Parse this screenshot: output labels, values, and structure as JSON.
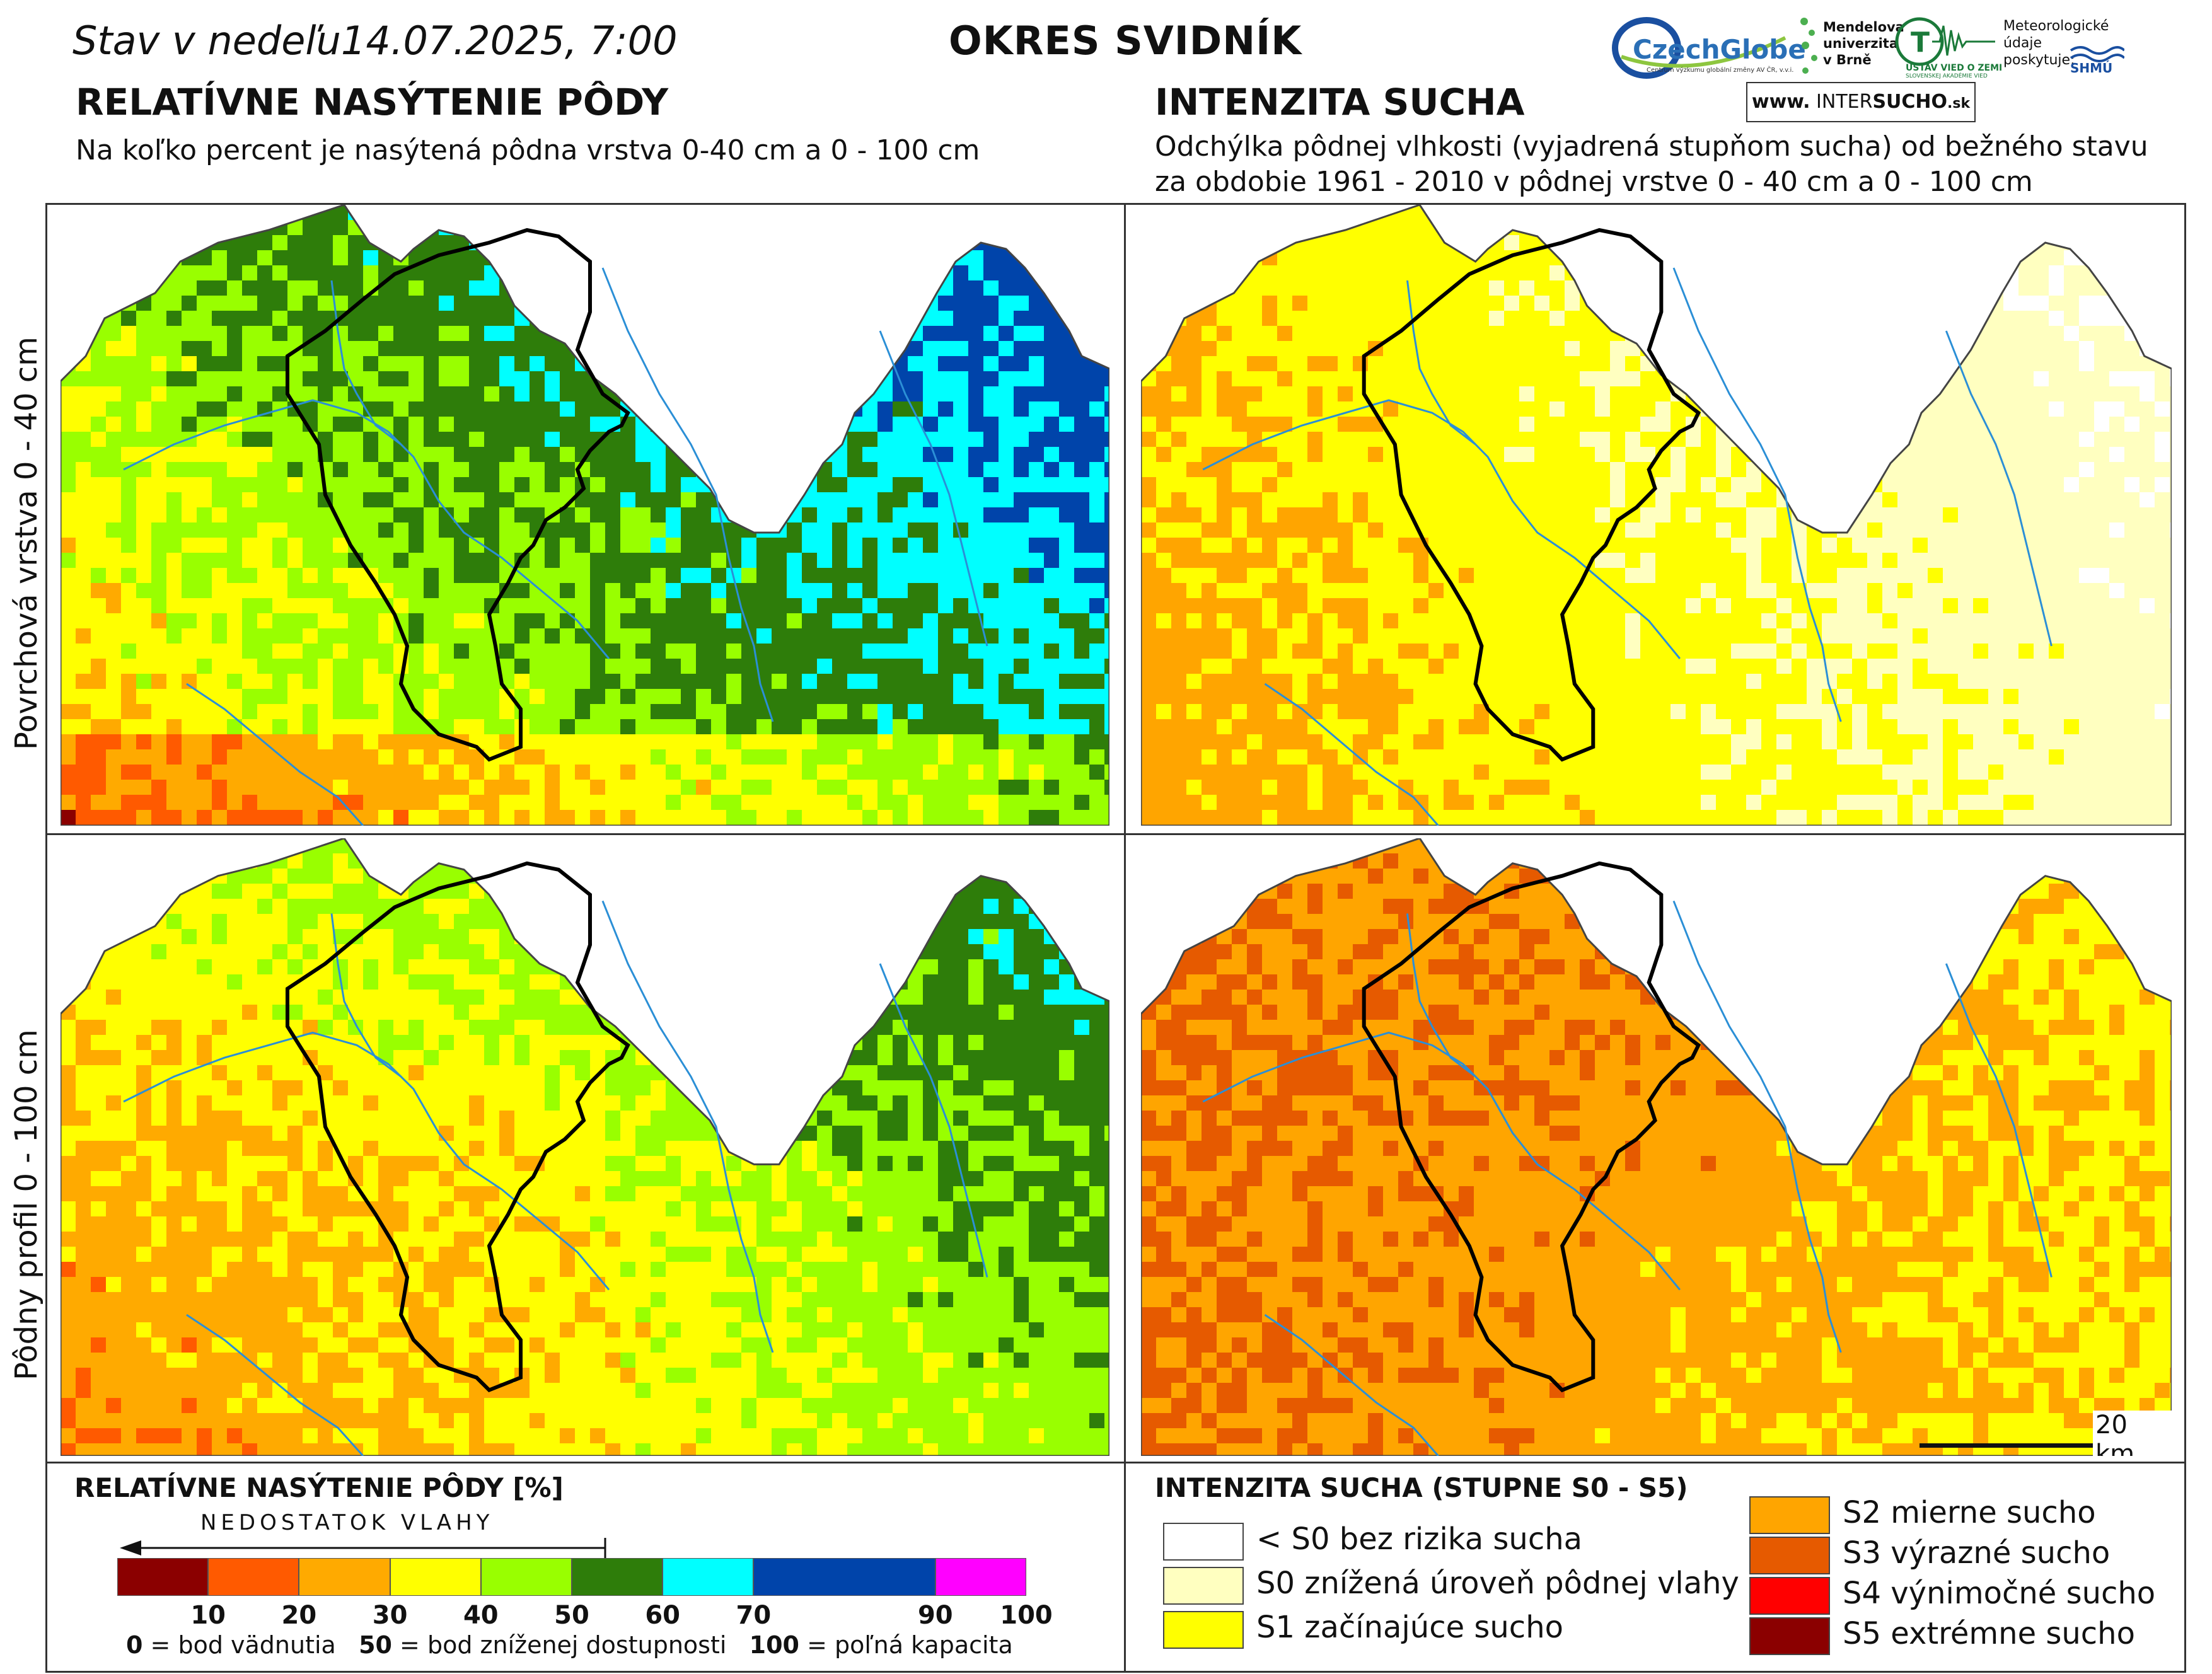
{
  "header": {
    "date_text": "Stav v nedeľu14.07.2025, 7:00",
    "district": "OKRES  SVIDNÍK"
  },
  "logos": {
    "czechglobe": "CzechGlobe",
    "czechglobe_sub": "Centrum výzkumu globální změny AV ČR, v.v.i.",
    "mendelu": "Mendelova univerzita v Brně",
    "usvz": "ÚSTAV VIED O ZEMI",
    "usvz_sub": "SLOVENSKEJ AKADÉMIE VIED",
    "meteo_note": "Meteorologické údaje poskytuje:",
    "shmu": "SHMÚ",
    "site_prefix": "www.",
    "site_name_a": "INTER",
    "site_name_b": "SUCHO",
    "site_suffix": ".sk"
  },
  "left_section": {
    "title": "RELATÍVNE NASÝTENIE PÔDY",
    "subtitle": "Na koľko percent je nasýtená pôdna vrstva 0-40 cm a 0 - 100 cm"
  },
  "right_section": {
    "title": "INTENZITA SUCHA",
    "subtitle_line1": "Odchýlka pôdnej vlhkosti (vyjadrená stupňom sucha) od bežného stavu",
    "subtitle_line2": "za obdobie 1961 - 2010 v pôdnej vrstve 0 - 40 cm a 0 - 100 cm"
  },
  "row_labels": {
    "top": "Povrchová vrstva 0 - 40 cm",
    "bottom": "Pôdny profil 0 - 100 cm"
  },
  "scale_bar": {
    "label": "20 km"
  },
  "saturation_legend": {
    "title": "RELATÍVNE NASÝTENIE PÔDY [%]",
    "arrow_label": "NEDOSTATOK VLAHY",
    "bins": [
      {
        "from": 0,
        "to": 10,
        "color": "#8b0000"
      },
      {
        "from": 10,
        "to": 20,
        "color": "#ff5a00"
      },
      {
        "from": 20,
        "to": 30,
        "color": "#ffaa00"
      },
      {
        "from": 30,
        "to": 40,
        "color": "#ffff00"
      },
      {
        "from": 40,
        "to": 50,
        "color": "#99ff00"
      },
      {
        "from": 50,
        "to": 60,
        "color": "#2e7d0a"
      },
      {
        "from": 60,
        "to": 70,
        "color": "#00ffff"
      },
      {
        "from": 70,
        "to": 90,
        "color": "#0044aa"
      },
      {
        "from": 90,
        "to": 100,
        "color": "#ff00ff"
      }
    ],
    "ticks": [
      "10",
      "20",
      "30",
      "40",
      "50",
      "60",
      "70",
      "90",
      "100"
    ],
    "note_0_value": "0",
    "note_0_text": " = bod vädnutia",
    "note_50_value": "50",
    "note_50_text": " = bod zníženej dostupnosti",
    "note_100_value": "100",
    "note_100_text": " = poľná kapacita"
  },
  "drought_legend": {
    "title": "INTENZITA SUCHA (STUPNE S0 - S5)",
    "items": [
      {
        "label": "< S0 bez rizika sucha",
        "color": "#ffffff"
      },
      {
        "label": "S0 znížená úroveň pôdnej vlahy",
        "color": "#ffffc0"
      },
      {
        "label": "S1 začínajúce sucho",
        "color": "#ffff00"
      },
      {
        "label": "S2 mierne sucho",
        "color": "#ffa500"
      },
      {
        "label": "S3 výrazné sucho",
        "color": "#e65a00"
      },
      {
        "label": "S4 výnimočné sucho",
        "color": "#ff0000"
      },
      {
        "label": "S5 extrémne sucho",
        "color": "#8b0000"
      }
    ]
  }
}
